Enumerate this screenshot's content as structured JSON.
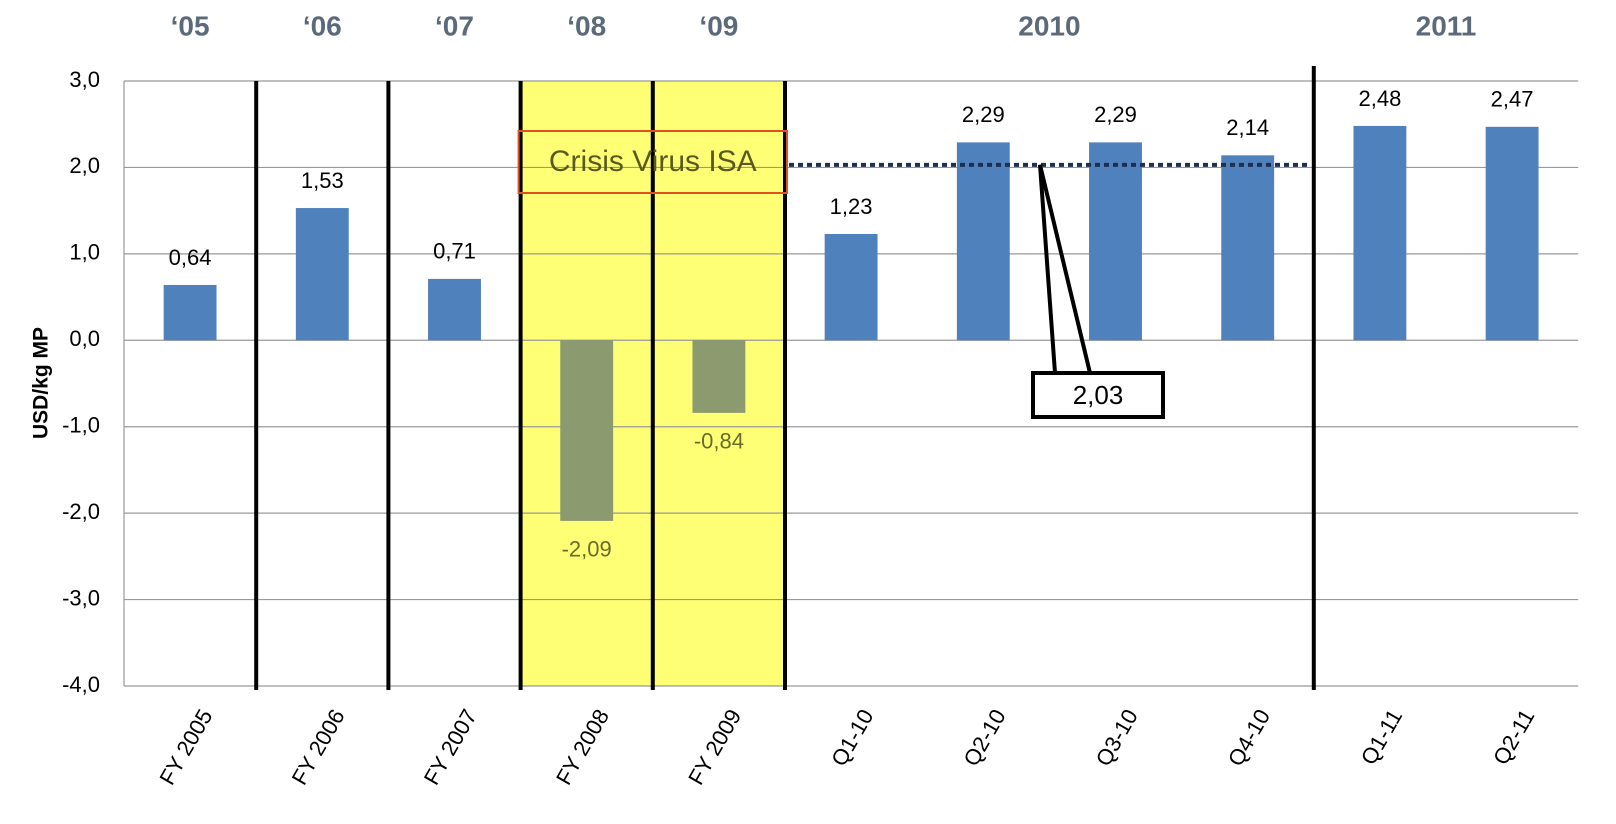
{
  "chart_data": {
    "type": "bar",
    "ylabel": "USD/kg MP",
    "categories": [
      "FY 2005",
      "FY 2006",
      "FY 2007",
      "FY 2008",
      "FY 2009",
      "Q1-10",
      "Q2-10",
      "Q3-10",
      "Q4-10",
      "Q1-11",
      "Q2-11"
    ],
    "values": [
      0.64,
      1.53,
      0.71,
      -2.09,
      -0.84,
      1.23,
      2.29,
      2.29,
      2.14,
      2.48,
      2.47
    ],
    "value_labels": [
      "0,64",
      "1,53",
      "0,71",
      "-2,09",
      "-0,84",
      "1,23",
      "2,29",
      "2,29",
      "2,14",
      "2,48",
      "2,47"
    ],
    "color": "#4f81bd",
    "negative_color": "#8c9a70",
    "ylim": [
      -4,
      3
    ],
    "yticks": [
      {
        "value": -4,
        "label": "-4,0"
      },
      {
        "value": -3,
        "label": "-3,0"
      },
      {
        "value": -2,
        "label": "-2,0"
      },
      {
        "value": -1,
        "label": "-1,0"
      },
      {
        "value": 0,
        "label": "0,0"
      },
      {
        "value": 1,
        "label": "1,0"
      },
      {
        "value": 2,
        "label": "2,0"
      },
      {
        "value": 3,
        "label": "3,0"
      }
    ],
    "grid": true,
    "periods": [
      "‘05",
      "‘06",
      "‘07",
      "‘08",
      "‘09",
      "2010",
      "2011"
    ],
    "annotation": "Crisis Virus ISA",
    "reference": {
      "value": 2.03,
      "label": "2,03"
    }
  }
}
